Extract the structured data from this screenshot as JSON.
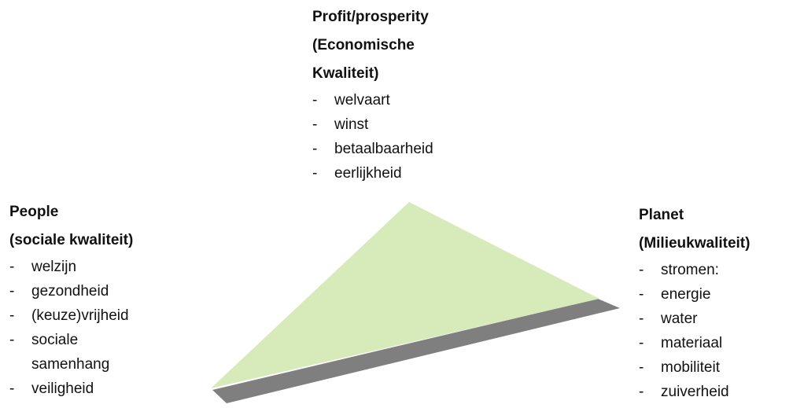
{
  "groups": [
    {
      "title": [
        "Profit/prosperity",
        "(Economische",
        "Kwaliteit)"
      ],
      "items": [
        "welvaart",
        "winst",
        "betaalbaarheid",
        "eerlijkheid"
      ]
    },
    {
      "title": [
        "People",
        "(sociale kwaliteit)"
      ],
      "items": [
        "welzijn",
        "gezondheid",
        "(keuze)vrijheid",
        "sociale samenhang",
        "veiligheid"
      ]
    },
    {
      "title": [
        "Planet",
        "(Milieukwaliteit)"
      ],
      "items": [
        "stromen:",
        "energie",
        "water",
        "materiaal",
        "mobiliteit",
        "zuiverheid"
      ]
    }
  ]
}
